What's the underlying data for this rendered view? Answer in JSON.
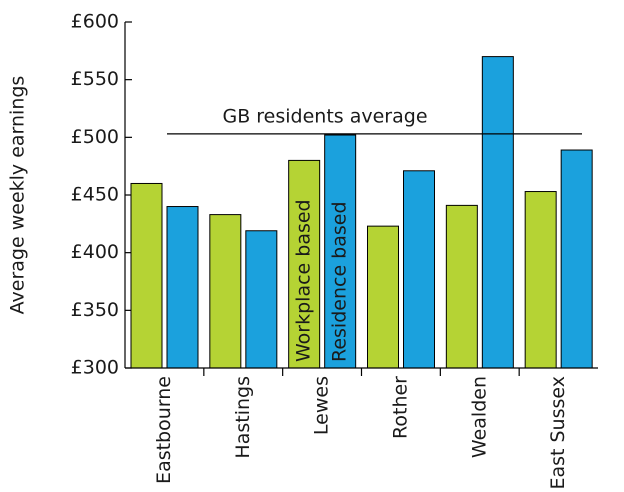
{
  "chart_data": {
    "type": "bar",
    "y_label": "Average weekly earnings",
    "categories": [
      "Eastbourne",
      "Hastings",
      "Lewes",
      "Rother",
      "Wealden",
      "East Sussex"
    ],
    "series": [
      {
        "name": "Workplace based",
        "color": "#b5d334",
        "values": [
          460,
          433,
          480,
          423,
          441,
          453
        ]
      },
      {
        "name": "Residence based",
        "color": "#1ba1dd",
        "values": [
          440,
          419,
          502,
          471,
          570,
          489
        ]
      }
    ],
    "reference_line": {
      "label": "GB residents average",
      "value": 503
    },
    "ylim": [
      300,
      600
    ],
    "yticks": [
      {
        "value": 300,
        "label": "£300"
      },
      {
        "value": 350,
        "label": "£350"
      },
      {
        "value": 400,
        "label": "£400"
      },
      {
        "value": 450,
        "label": "£450"
      },
      {
        "value": 500,
        "label": "£500"
      },
      {
        "value": 550,
        "label": "£550"
      },
      {
        "value": 600,
        "label": "£600"
      }
    ]
  }
}
